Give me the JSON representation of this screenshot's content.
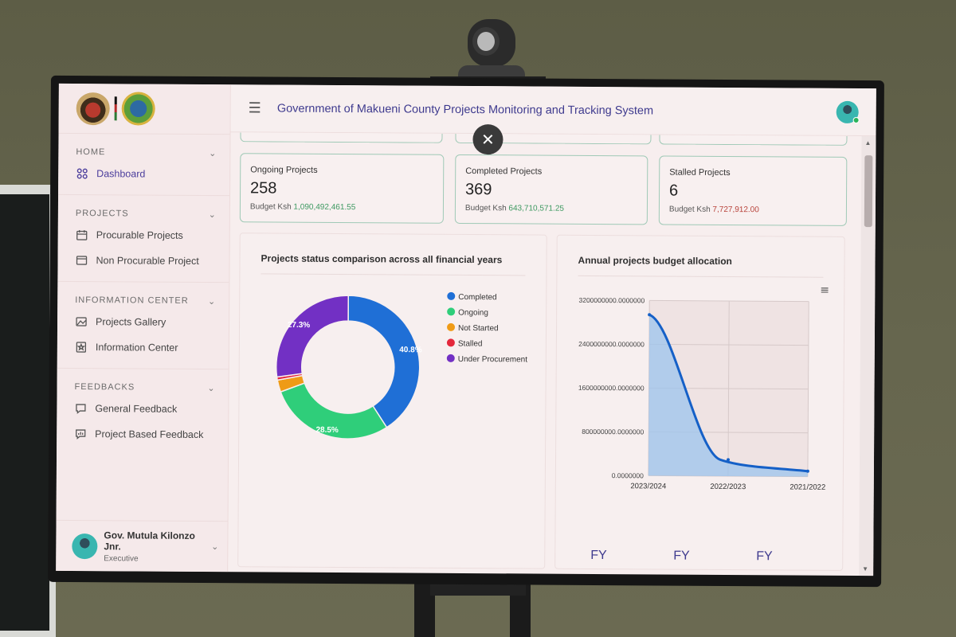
{
  "app": {
    "title": "Government of Makueni County Projects Monitoring and Tracking System"
  },
  "sidebar": {
    "sections": [
      {
        "title": "HOME",
        "items": [
          {
            "label": "Dashboard",
            "icon": "dashboard-icon"
          }
        ]
      },
      {
        "title": "PROJECTS",
        "items": [
          {
            "label": "Procurable Projects",
            "icon": "calendar-icon"
          },
          {
            "label": "Non Procurable Project",
            "icon": "window-icon"
          }
        ]
      },
      {
        "title": "INFORMATION CENTER",
        "items": [
          {
            "label": "Projects Gallery",
            "icon": "gallery-icon"
          },
          {
            "label": "Information Center",
            "icon": "star-bookmark-icon"
          }
        ]
      },
      {
        "title": "FEEDBACKS",
        "items": [
          {
            "label": "General Feedback",
            "icon": "comment-icon"
          },
          {
            "label": "Project Based Feedback",
            "icon": "chart-comment-icon"
          }
        ]
      }
    ],
    "user": {
      "name": "Gov. Mutula Kilonzo Jnr.",
      "role": "Executive"
    }
  },
  "stats": [
    {
      "label": "Ongoing Projects",
      "value": "258",
      "budget_prefix": "Budget Ksh",
      "budget": "1,090,492,461.55",
      "color": "#3f9a62"
    },
    {
      "label": "Completed Projects",
      "value": "369",
      "budget_prefix": "Budget Ksh",
      "budget": "643,710,571.25",
      "color": "#3f9a62"
    },
    {
      "label": "Stalled Projects",
      "value": "6",
      "budget_prefix": "Budget Ksh",
      "budget": "7,727,912.00",
      "color": "#b8433b"
    }
  ],
  "chart_data": [
    {
      "type": "pie",
      "title": "Projects status comparison across all financial years",
      "categories": [
        "Completed",
        "Ongoing",
        "Not Started",
        "Stalled",
        "Under Procurement"
      ],
      "values": [
        40.8,
        28.5,
        2.7,
        0.7,
        27.3
      ],
      "labels": [
        "40.8%",
        "28.5%",
        "",
        "",
        "27.3%"
      ],
      "colors": [
        "#1f6fd6",
        "#2fce7a",
        "#ef9b16",
        "#e4273b",
        "#7230c4"
      ],
      "legend": "right"
    },
    {
      "type": "area",
      "title": "Annual projects budget allocation",
      "x": [
        "2023/2024",
        "2022/2023",
        "2021/2022"
      ],
      "values": [
        2940000000,
        300000000,
        100000000
      ],
      "ylim": [
        0,
        3200000000
      ],
      "yticks": [
        "3200000000.0000000",
        "2400000000.0000000",
        "1600000000.0000000",
        "800000000.0000000",
        "0.0000000"
      ],
      "color": "#1560c7"
    }
  ],
  "fy_labels": [
    "FY",
    "FY",
    "FY"
  ],
  "colors": {
    "accent": "#3e3a8e",
    "card_border": "#9fc9b6"
  }
}
